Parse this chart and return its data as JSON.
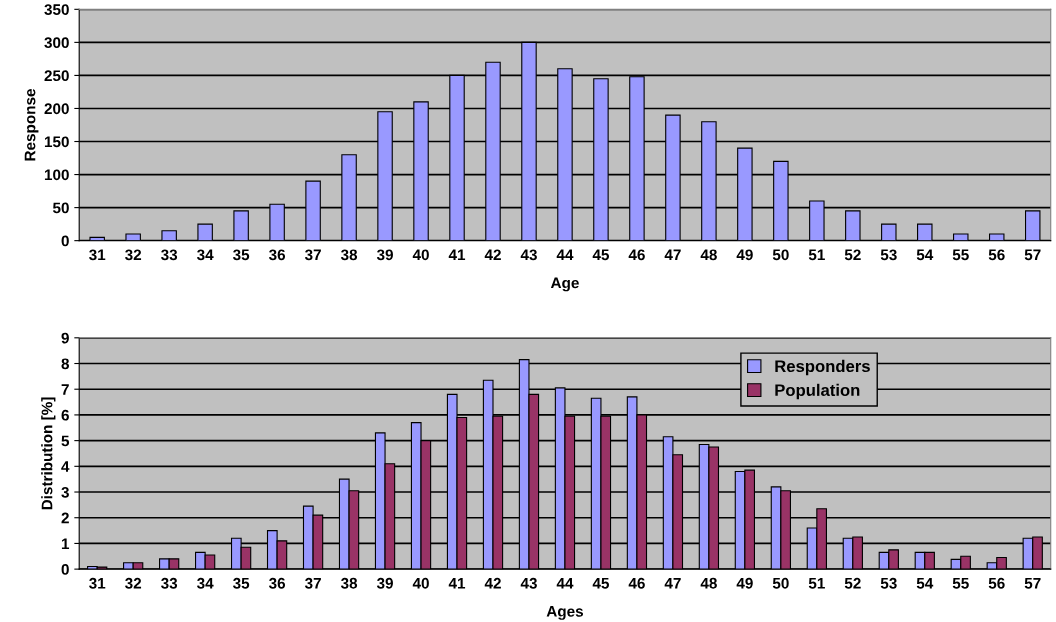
{
  "chart_data": [
    {
      "type": "bar",
      "xlabel": "Age",
      "ylabel": "Response",
      "categories": [
        "31",
        "32",
        "33",
        "34",
        "35",
        "36",
        "37",
        "38",
        "39",
        "40",
        "41",
        "42",
        "43",
        "44",
        "45",
        "46",
        "47",
        "48",
        "49",
        "50",
        "51",
        "52",
        "53",
        "54",
        "55",
        "56",
        "57"
      ],
      "series": [
        {
          "color": "#9999ff",
          "values": [
            5,
            10,
            15,
            25,
            45,
            55,
            90,
            130,
            195,
            210,
            250,
            270,
            300,
            260,
            245,
            248,
            190,
            180,
            140,
            120,
            60,
            45,
            25,
            25,
            10,
            10,
            45
          ]
        }
      ],
      "ylim": [
        0,
        350
      ],
      "yticks": [
        0,
        50,
        100,
        150,
        200,
        250,
        300,
        350
      ],
      "grid": "y",
      "legend": false
    },
    {
      "type": "bar",
      "xlabel": "Ages",
      "ylabel": "Distribution [%]",
      "categories": [
        "31",
        "32",
        "33",
        "34",
        "35",
        "36",
        "37",
        "38",
        "39",
        "40",
        "41",
        "42",
        "43",
        "44",
        "45",
        "46",
        "47",
        "48",
        "49",
        "50",
        "51",
        "52",
        "53",
        "54",
        "55",
        "56",
        "57"
      ],
      "series": [
        {
          "name": "Responders",
          "color": "#9999ff",
          "values": [
            0.1,
            0.25,
            0.4,
            0.65,
            1.2,
            1.5,
            2.45,
            3.5,
            5.3,
            5.7,
            6.8,
            7.35,
            8.15,
            7.05,
            6.65,
            6.7,
            5.15,
            4.85,
            3.8,
            3.2,
            1.6,
            1.2,
            0.65,
            0.65,
            0.38,
            0.25,
            1.2
          ]
        },
        {
          "name": "Population",
          "color": "#993366",
          "values": [
            0.08,
            0.25,
            0.4,
            0.55,
            0.85,
            1.1,
            2.1,
            3.05,
            4.1,
            5.0,
            5.9,
            5.95,
            6.8,
            5.95,
            5.95,
            6.0,
            4.45,
            4.75,
            3.85,
            3.05,
            2.35,
            1.25,
            0.75,
            0.65,
            0.5,
            0.45,
            1.25
          ]
        }
      ],
      "ylim": [
        0,
        9
      ],
      "yticks": [
        0,
        1,
        2,
        3,
        4,
        5,
        6,
        7,
        8,
        9
      ],
      "grid": "y",
      "legend": "top right"
    }
  ]
}
